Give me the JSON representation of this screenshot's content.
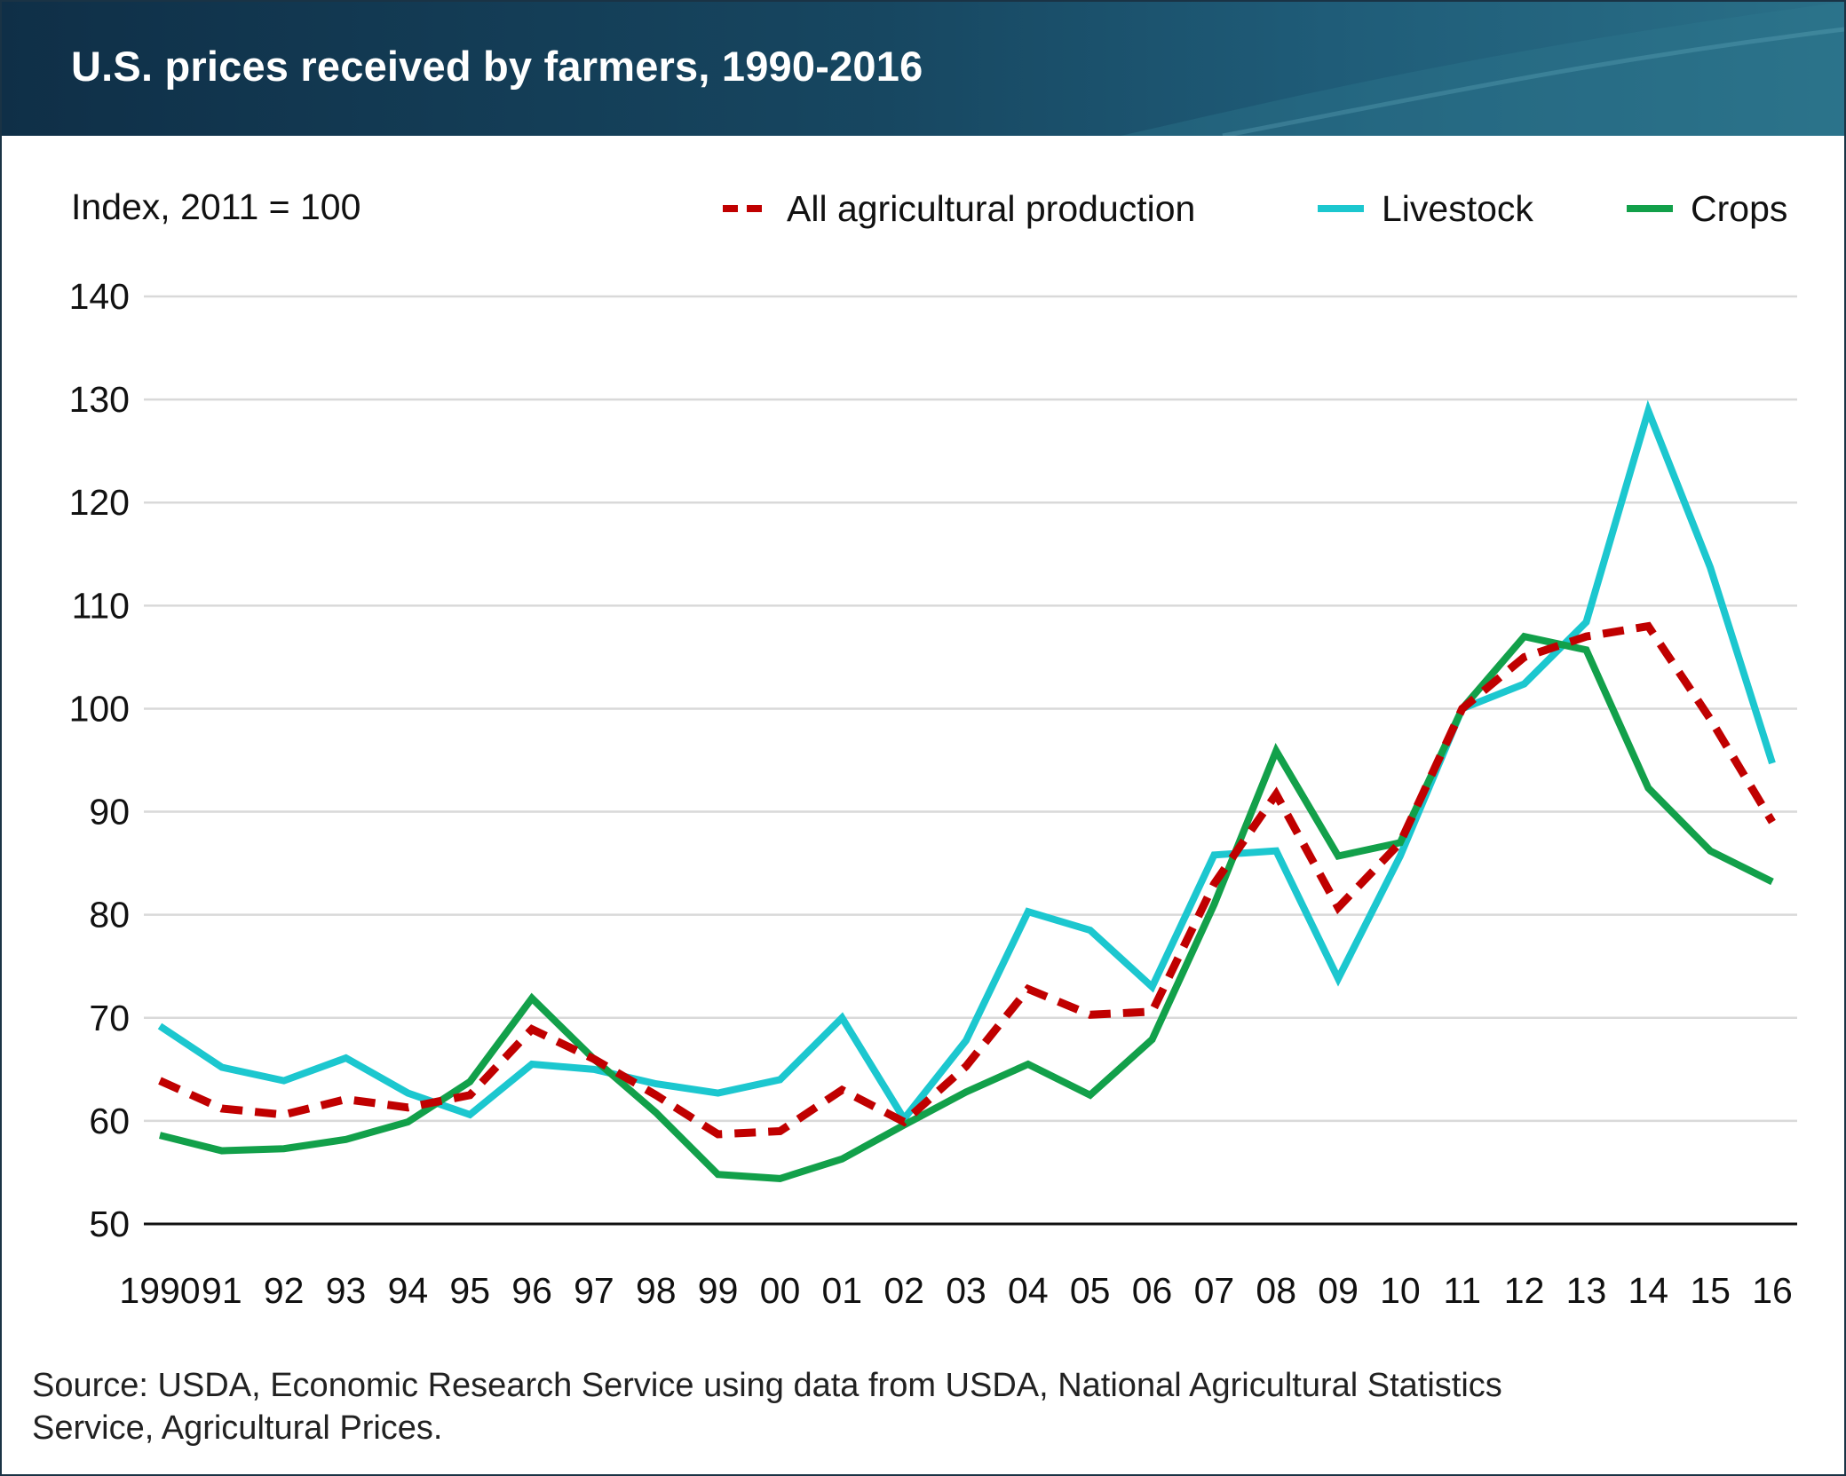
{
  "header": {
    "title": "U.S. prices received by farmers, 1990-2016"
  },
  "chart_data": {
    "type": "line",
    "title": "U.S. prices received by farmers, 1990-2016",
    "subtitle": "",
    "xlabel": "",
    "ylabel": "Index, 2011 = 100",
    "x": [
      1990,
      1991,
      1992,
      1993,
      1994,
      1995,
      1996,
      1997,
      1998,
      1999,
      2000,
      2001,
      2002,
      2003,
      2004,
      2005,
      2006,
      2007,
      2008,
      2009,
      2010,
      2011,
      2012,
      2013,
      2014,
      2015,
      2016
    ],
    "x_tick_labels": [
      "1990",
      "91",
      "92",
      "93",
      "94",
      "95",
      "96",
      "97",
      "98",
      "99",
      "00",
      "01",
      "02",
      "03",
      "04",
      "05",
      "06",
      "07",
      "08",
      "09",
      "10",
      "11",
      "12",
      "13",
      "14",
      "15",
      "16"
    ],
    "ylim": [
      50,
      140
    ],
    "yticks": [
      50,
      60,
      70,
      80,
      90,
      100,
      110,
      120,
      130,
      140
    ],
    "grid": "horizontal",
    "legend_position": "top-right",
    "series": [
      {
        "name": "All agricultural production",
        "color": "#c00000",
        "line_style": "dashed",
        "values": [
          63.9,
          61.2,
          60.6,
          62.1,
          61.3,
          62.5,
          68.9,
          66.0,
          62.5,
          58.7,
          59.0,
          63.0,
          59.9,
          65.3,
          72.8,
          70.3,
          70.6,
          83.0,
          91.7,
          80.7,
          87.0,
          100.0,
          105.0,
          107.0,
          108.0,
          99.0,
          89.0
        ]
      },
      {
        "name": "Livestock",
        "color": "#1cc7cf",
        "line_style": "solid",
        "values": [
          69.2,
          65.2,
          63.9,
          66.1,
          62.7,
          60.6,
          65.5,
          65.0,
          63.6,
          62.7,
          64.0,
          70.0,
          60.2,
          67.8,
          80.3,
          78.5,
          73.0,
          85.8,
          86.2,
          73.8,
          85.7,
          100.0,
          102.4,
          108.4,
          128.9,
          113.7,
          94.7
        ]
      },
      {
        "name": "Crops",
        "color": "#12a04a",
        "line_style": "solid",
        "values": [
          58.6,
          57.1,
          57.3,
          58.2,
          59.9,
          63.8,
          71.9,
          66.0,
          60.8,
          54.8,
          54.4,
          56.3,
          59.6,
          62.8,
          65.5,
          62.5,
          67.9,
          81.0,
          95.9,
          85.7,
          87.0,
          100.0,
          107.0,
          105.7,
          92.3,
          86.2,
          83.2
        ]
      }
    ]
  },
  "source": {
    "line_1": "Source: USDA, Economic Research Service using data from USDA, National Agricultural Statistics",
    "line_2": "Service, Agricultural Prices."
  }
}
